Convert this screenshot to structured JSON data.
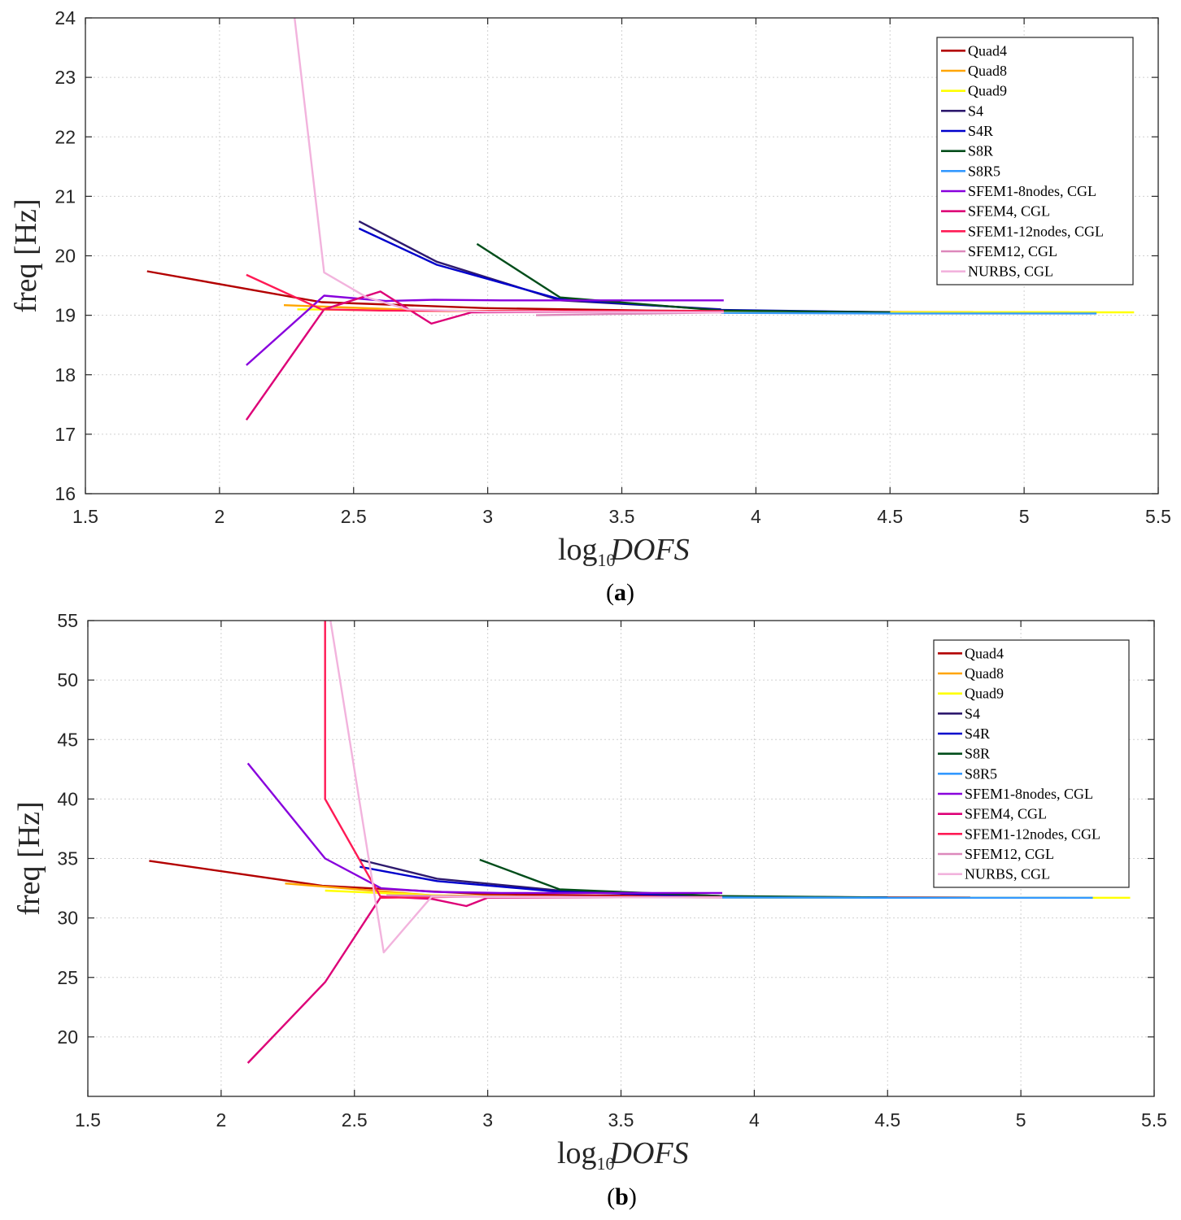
{
  "chart_data": [
    {
      "type": "line",
      "panel_label": "a",
      "xlabel_main": "log",
      "xlabel_sub": "10",
      "xlabel_var": "DOFS",
      "ylabel": "freq [Hz]",
      "xlim": [
        1.5,
        5.5
      ],
      "ylim": [
        16,
        24
      ],
      "xticks": [
        1.5,
        2,
        2.5,
        3,
        3.5,
        4,
        4.5,
        5,
        5.5
      ],
      "yticks": [
        16,
        17,
        18,
        19,
        20,
        21,
        22,
        23,
        24
      ],
      "xtick_labels": [
        "1.5",
        "2",
        "2.5",
        "3",
        "3.5",
        "4",
        "4.5",
        "5",
        "5.5"
      ],
      "ytick_labels": [
        "16",
        "17",
        "18",
        "19",
        "20",
        "21",
        "22",
        "23",
        "24"
      ],
      "grid": true,
      "legend_position": "top-right",
      "series": [
        {
          "name": "Quad4",
          "color": "#b30000",
          "x": [
            1.73,
            2.38,
            2.99,
            3.59,
            4.2,
            4.81
          ],
          "y": [
            19.74,
            19.22,
            19.12,
            19.08,
            19.06,
            19.05
          ]
        },
        {
          "name": "Quad8",
          "color": "#ffa500",
          "x": [
            2.24,
            2.79,
            3.37,
            3.97,
            4.57,
            5.17
          ],
          "y": [
            19.17,
            19.08,
            19.06,
            19.05,
            19.05,
            19.05
          ]
        },
        {
          "name": "Quad9",
          "color": "#ffff00",
          "x": [
            2.29,
            2.86,
            3.45,
            4.05,
            4.65,
            5.26,
            5.41
          ],
          "y": [
            19.1,
            19.07,
            19.06,
            19.05,
            19.05,
            19.05,
            19.05
          ]
        },
        {
          "name": "S4",
          "color": "#2e1a6e",
          "x": [
            2.52,
            2.81,
            3.27,
            3.87
          ],
          "y": [
            20.58,
            19.9,
            19.25,
            19.1
          ]
        },
        {
          "name": "S4R",
          "color": "#0000cc",
          "x": [
            2.52,
            2.81,
            3.27,
            3.87,
            4.5
          ],
          "y": [
            20.46,
            19.85,
            19.27,
            19.09,
            19.05
          ]
        },
        {
          "name": "S8R",
          "color": "#004d1a",
          "x": [
            2.96,
            3.27,
            3.87,
            4.5
          ],
          "y": [
            20.2,
            19.3,
            19.08,
            19.05
          ]
        },
        {
          "name": "S8R5",
          "color": "#3399ff",
          "x": [
            3.87,
            4.5,
            5.27
          ],
          "y": [
            19.04,
            19.03,
            19.03
          ]
        },
        {
          "name": "SFEM1-8nodes, CGL",
          "color": "#8800dd",
          "x": [
            2.1,
            2.39,
            2.62,
            2.8,
            3.05,
            3.88
          ],
          "y": [
            18.16,
            19.33,
            19.24,
            19.26,
            19.25,
            19.25
          ]
        },
        {
          "name": "SFEM4, CGL",
          "color": "#dd0077",
          "x": [
            2.1,
            2.39,
            2.6,
            2.79,
            2.94,
            3.88
          ],
          "y": [
            17.24,
            19.1,
            19.4,
            18.86,
            19.05,
            19.06
          ]
        },
        {
          "name": "SFEM1-12nodes, CGL",
          "color": "#ff1a55",
          "x": [
            2.1,
            2.38,
            2.6,
            3.0,
            3.88
          ],
          "y": [
            19.68,
            19.1,
            19.08,
            19.07,
            19.07
          ]
        },
        {
          "name": "SFEM12, CGL",
          "color": "#dd88bb",
          "x": [
            3.18,
            3.88
          ],
          "y": [
            19.0,
            19.05
          ]
        },
        {
          "name": "NURBS, CGL",
          "color": "#f2b3dd",
          "x": [
            2.28,
            2.39,
            2.55,
            2.7,
            3.0,
            3.88
          ],
          "y": [
            24.0,
            19.72,
            19.3,
            19.1,
            19.06,
            19.05
          ]
        }
      ]
    },
    {
      "type": "line",
      "panel_label": "b",
      "xlabel_main": "log",
      "xlabel_sub": "10",
      "xlabel_var": "DOFS",
      "ylabel": "freq [Hz]",
      "xlim": [
        1.5,
        5.5
      ],
      "ylim": [
        15,
        55
      ],
      "xticks": [
        1.5,
        2,
        2.5,
        3,
        3.5,
        4,
        4.5,
        5,
        5.5
      ],
      "yticks": [
        20,
        25,
        30,
        35,
        40,
        45,
        50,
        55
      ],
      "xtick_labels": [
        "1.5",
        "2",
        "2.5",
        "3",
        "3.5",
        "4",
        "4.5",
        "5",
        "5.5"
      ],
      "ytick_labels": [
        "20",
        "25",
        "30",
        "35",
        "40",
        "45",
        "50",
        "55"
      ],
      "grid": true,
      "legend_position": "top-right",
      "series": [
        {
          "name": "Quad4",
          "color": "#b30000",
          "x": [
            1.73,
            2.38,
            2.99,
            3.59,
            4.2,
            4.81
          ],
          "y": [
            34.8,
            32.7,
            32.0,
            31.85,
            31.75,
            31.72
          ]
        },
        {
          "name": "Quad8",
          "color": "#ffa500",
          "x": [
            2.24,
            2.79,
            3.37,
            3.97,
            4.57,
            5.17
          ],
          "y": [
            32.9,
            31.9,
            31.75,
            31.72,
            31.7,
            31.7
          ]
        },
        {
          "name": "Quad9",
          "color": "#ffff00",
          "x": [
            2.39,
            2.86,
            3.45,
            4.05,
            4.65,
            5.26,
            5.41
          ],
          "y": [
            32.3,
            31.85,
            31.75,
            31.72,
            31.7,
            31.7,
            31.7
          ]
        },
        {
          "name": "S4",
          "color": "#2e1a6e",
          "x": [
            2.52,
            2.81,
            3.27,
            3.87
          ],
          "y": [
            34.9,
            33.3,
            32.3,
            31.85
          ]
        },
        {
          "name": "S4R",
          "color": "#0000cc",
          "x": [
            2.52,
            2.81,
            3.27,
            3.87,
            4.5
          ],
          "y": [
            34.3,
            33.1,
            32.2,
            31.8,
            31.72
          ]
        },
        {
          "name": "S8R",
          "color": "#004d1a",
          "x": [
            2.97,
            3.27,
            3.87,
            4.5
          ],
          "y": [
            34.9,
            32.4,
            31.85,
            31.72
          ]
        },
        {
          "name": "S8R5",
          "color": "#3399ff",
          "x": [
            3.87,
            4.5,
            5.27
          ],
          "y": [
            31.72,
            31.7,
            31.7
          ]
        },
        {
          "name": "SFEM1-8nodes, CGL",
          "color": "#8800dd",
          "x": [
            2.1,
            2.39,
            2.6,
            2.8,
            3.05,
            3.88
          ],
          "y": [
            43.0,
            35.0,
            32.5,
            32.2,
            32.1,
            32.1
          ]
        },
        {
          "name": "SFEM4, CGL",
          "color": "#dd0077",
          "x": [
            2.1,
            2.39,
            2.6,
            2.79,
            2.92,
            3.0,
            3.88
          ],
          "y": [
            17.8,
            24.6,
            31.8,
            31.6,
            31.0,
            31.7,
            31.75
          ]
        },
        {
          "name": "SFEM1-12nodes, CGL",
          "color": "#ff1a55",
          "x": [
            2.39,
            2.39,
            2.6,
            3.0,
            3.88
          ],
          "y": [
            55.0,
            40.0,
            31.7,
            31.8,
            31.75
          ]
        },
        {
          "name": "SFEM12, CGL",
          "color": "#dd88bb",
          "x": [
            2.62,
            3.0,
            3.88
          ],
          "y": [
            31.9,
            31.8,
            31.72
          ]
        },
        {
          "name": "NURBS, CGL",
          "color": "#f2b3dd",
          "x": [
            2.41,
            2.61,
            2.79,
            3.0,
            3.88
          ],
          "y": [
            55.0,
            27.1,
            31.8,
            31.75,
            31.72
          ]
        }
      ]
    }
  ]
}
